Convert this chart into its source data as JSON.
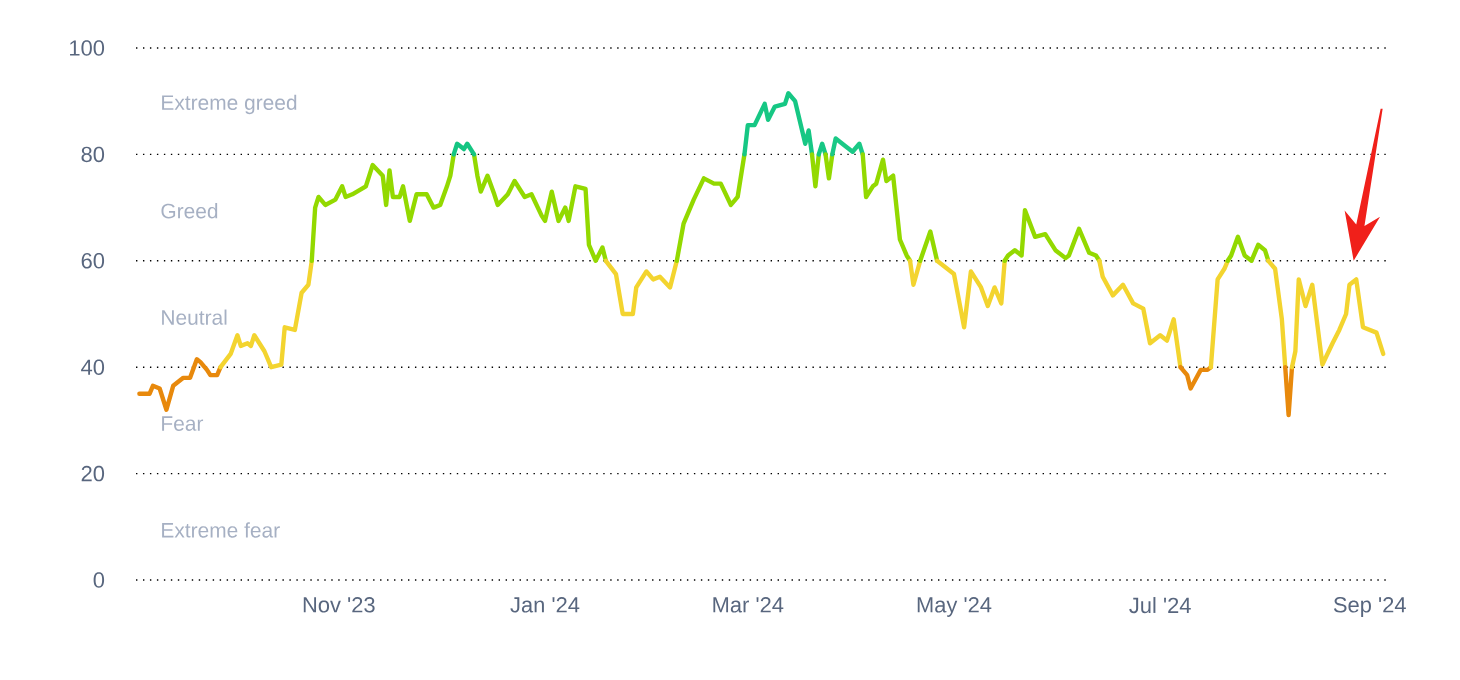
{
  "chart_data": {
    "type": "line",
    "xlim": [
      "2023-09-02",
      "2024-09-07"
    ],
    "xticks": [
      {
        "value": "2023-11-01",
        "label": "Nov '23"
      },
      {
        "value": "2024-01-01",
        "label": "Jan '24"
      },
      {
        "value": "2024-03-01",
        "label": "Mar '24"
      },
      {
        "value": "2024-05-01",
        "label": "May '24"
      },
      {
        "value": "2024-07-01",
        "label": "Jul '24"
      },
      {
        "value": "2024-09-01",
        "label": "Sep '24"
      }
    ],
    "ylim": [
      0,
      100
    ],
    "yticks": [
      0,
      20,
      40,
      60,
      80,
      100
    ],
    "grid": "y",
    "annotations": [
      "Extreme greed",
      "Greed",
      "Neutral",
      "Fear",
      "Extreme fear"
    ],
    "series": [
      {
        "color": "#e8890c",
        "x": [
          "2023-09-03",
          "2023-09-06",
          "2023-09-07",
          "2023-09-09",
          "2023-09-11",
          "2023-09-13",
          "2023-09-16",
          "2023-09-18",
          "2023-09-20",
          "2023-09-21",
          "2023-09-23",
          "2023-09-24",
          "2023-09-26",
          "2023-09-27"
        ],
        "values": [
          35,
          35,
          36.5,
          36,
          32,
          36.5,
          38,
          38,
          41.5,
          41,
          39.5,
          38.5,
          38.5,
          40
        ]
      },
      {
        "color": "#f3d42f",
        "x": [
          "2023-09-27",
          "2023-09-30",
          "2023-10-02",
          "2023-10-03",
          "2023-10-05",
          "2023-10-06",
          "2023-10-07",
          "2023-10-10",
          "2023-10-12",
          "2023-10-15",
          "2023-10-16",
          "2023-10-19",
          "2023-10-21",
          "2023-10-23",
          "2023-10-24"
        ],
        "values": [
          40,
          42.5,
          46,
          44,
          44.5,
          44,
          46,
          43,
          40,
          40.5,
          47.5,
          47,
          54,
          55.5,
          60
        ]
      },
      {
        "color": "#93d900",
        "x": [
          "2023-10-24",
          "2023-10-25",
          "2023-10-26",
          "2023-10-28",
          "2023-10-31",
          "2023-11-02",
          "2023-11-03",
          "2023-11-05",
          "2023-11-09",
          "2023-11-11",
          "2023-11-14",
          "2023-11-15",
          "2023-11-16",
          "2023-11-17",
          "2023-11-19",
          "2023-11-20",
          "2023-11-22",
          "2023-11-24",
          "2023-11-27",
          "2023-11-29",
          "2023-12-01",
          "2023-12-03",
          "2023-12-04",
          "2023-12-05"
        ],
        "values": [
          60,
          70,
          72,
          70.5,
          71.5,
          74,
          72,
          72.5,
          74,
          78,
          76,
          70.5,
          77,
          72,
          72,
          74,
          67.5,
          72.5,
          72.5,
          70,
          70.5,
          74,
          76,
          80
        ]
      },
      {
        "color": "#93d900",
        "x": [
          "2023-12-11",
          "2023-12-12",
          "2023-12-13",
          "2023-12-15",
          "2023-12-17",
          "2023-12-18",
          "2023-12-21",
          "2023-12-23",
          "2023-12-26",
          "2023-12-28",
          "2023-12-31",
          "2024-01-01",
          "2024-01-03",
          "2024-01-05",
          "2024-01-07",
          "2024-01-08",
          "2024-01-10",
          "2024-01-13",
          "2024-01-14",
          "2024-01-16",
          "2024-01-18",
          "2024-01-19"
        ],
        "values": [
          80,
          76,
          73,
          76,
          72.5,
          70.5,
          72.5,
          75,
          72,
          72.5,
          68.5,
          67.5,
          73,
          67.5,
          70,
          67.5,
          74,
          73.5,
          63,
          60,
          62.5,
          60
        ]
      },
      {
        "color": "#f3d42f",
        "x": [
          "2024-01-19",
          "2024-01-22",
          "2024-01-24",
          "2024-01-27",
          "2024-01-28",
          "2024-01-31",
          "2024-02-02",
          "2024-02-04",
          "2024-02-07",
          "2024-02-09"
        ],
        "values": [
          60,
          57.5,
          50,
          50,
          55,
          58,
          56.5,
          57,
          55,
          60
        ]
      },
      {
        "color": "#93d900",
        "x": [
          "2024-02-09",
          "2024-02-11",
          "2024-02-14",
          "2024-02-17",
          "2024-02-20",
          "2024-02-22",
          "2024-02-25",
          "2024-02-27",
          "2024-02-29"
        ],
        "values": [
          60,
          67,
          71.5,
          75.5,
          74.5,
          74.5,
          70.5,
          72,
          80
        ]
      },
      {
        "color": "#16c784",
        "x": [
          "2024-02-29",
          "2024-03-01",
          "2024-03-03",
          "2024-03-06",
          "2024-03-07",
          "2024-03-09",
          "2024-03-12",
          "2024-03-13",
          "2024-03-15",
          "2024-03-18",
          "2024-03-19",
          "2024-03-20"
        ],
        "values": [
          80,
          85.5,
          85.5,
          89.5,
          86.5,
          89,
          89.5,
          91.5,
          90,
          82,
          84.5,
          80
        ]
      },
      {
        "color": "#93d900",
        "x": [
          "2024-03-20",
          "2024-03-21",
          "2024-03-22"
        ],
        "values": [
          80,
          74,
          80
        ]
      },
      {
        "color": "#16c784",
        "x": [
          "2024-03-22",
          "2024-03-23",
          "2024-03-24"
        ],
        "values": [
          80,
          82,
          80
        ]
      },
      {
        "color": "#93d900",
        "x": [
          "2024-03-24",
          "2024-03-25",
          "2024-03-26"
        ],
        "values": [
          80,
          75.5,
          80
        ]
      },
      {
        "color": "#1ac986",
        "x": [
          "2024-03-26",
          "2024-03-27",
          "2024-03-30",
          "2024-04-01",
          "2024-04-03",
          "2024-04-04"
        ],
        "values": [
          80,
          83,
          81.5,
          80.5,
          82,
          80
        ]
      },
      {
        "color": "#93d900",
        "x": [
          "2024-04-04",
          "2024-04-05",
          "2024-04-07",
          "2024-04-08",
          "2024-04-10",
          "2024-04-11",
          "2024-04-13",
          "2024-04-15",
          "2024-04-17",
          "2024-04-18"
        ],
        "values": [
          80,
          72,
          74,
          74.5,
          79,
          75,
          76,
          64,
          61,
          60
        ]
      },
      {
        "color": "#f3d42f",
        "x": [
          "2024-04-18",
          "2024-04-19",
          "2024-04-21"
        ],
        "values": [
          60,
          55.5,
          60
        ]
      },
      {
        "color": "#93d900",
        "x": [
          "2024-04-21",
          "2024-04-24",
          "2024-04-26"
        ],
        "values": [
          60,
          65.5,
          60
        ]
      },
      {
        "color": "#f3d42f",
        "x": [
          "2024-04-26",
          "2024-05-01",
          "2024-05-04",
          "2024-05-06",
          "2024-05-09",
          "2024-05-11",
          "2024-05-13",
          "2024-05-15",
          "2024-05-16"
        ],
        "values": [
          60,
          57.5,
          47.5,
          58,
          55,
          51.5,
          55,
          52,
          60
        ]
      },
      {
        "color": "#93d900",
        "x": [
          "2024-05-16",
          "2024-05-17",
          "2024-05-19",
          "2024-05-21",
          "2024-05-22",
          "2024-05-25",
          "2024-05-28",
          "2024-05-31",
          "2024-06-03",
          "2024-06-04",
          "2024-06-07",
          "2024-06-10",
          "2024-06-12",
          "2024-06-13"
        ],
        "values": [
          60,
          61,
          62,
          61,
          69.5,
          64.5,
          65,
          62,
          60.5,
          61,
          66,
          61.5,
          61,
          60
        ]
      },
      {
        "color": "#f3d42f",
        "x": [
          "2024-06-13",
          "2024-06-14",
          "2024-06-17",
          "2024-06-20",
          "2024-06-23",
          "2024-06-26",
          "2024-06-28",
          "2024-07-01",
          "2024-07-03",
          "2024-07-05",
          "2024-07-07"
        ],
        "values": [
          60,
          57,
          53.5,
          55.5,
          52,
          51,
          44.5,
          46,
          45,
          49,
          40
        ]
      },
      {
        "color": "#e8890c",
        "x": [
          "2024-07-07",
          "2024-07-09",
          "2024-07-10",
          "2024-07-13",
          "2024-07-15",
          "2024-07-16"
        ],
        "values": [
          40,
          38.5,
          36,
          39.5,
          39.5,
          40
        ]
      },
      {
        "color": "#f3d42f",
        "x": [
          "2024-07-16",
          "2024-07-18",
          "2024-07-20",
          "2024-07-21"
        ],
        "values": [
          40,
          56.5,
          58.5,
          60
        ]
      },
      {
        "color": "#93d900",
        "x": [
          "2024-07-21",
          "2024-07-22",
          "2024-07-24",
          "2024-07-26",
          "2024-07-28",
          "2024-07-30",
          "2024-08-01",
          "2024-08-02"
        ],
        "values": [
          60,
          61,
          64.5,
          61,
          60,
          63,
          62,
          60
        ]
      },
      {
        "color": "#f3d42f",
        "x": [
          "2024-08-02",
          "2024-08-04",
          "2024-08-06",
          "2024-08-07"
        ],
        "values": [
          60,
          58.5,
          49,
          40
        ]
      },
      {
        "color": "#e8890c",
        "x": [
          "2024-08-07",
          "2024-08-08",
          "2024-08-09"
        ],
        "values": [
          40,
          31,
          40
        ]
      },
      {
        "color": "#f3d42f",
        "x": [
          "2024-08-09",
          "2024-08-10",
          "2024-08-11",
          "2024-08-13",
          "2024-08-15",
          "2024-08-18",
          "2024-08-21",
          "2024-08-23",
          "2024-08-25",
          "2024-08-26",
          "2024-08-28",
          "2024-08-30",
          "2024-09-03",
          "2024-09-05"
        ],
        "values": [
          40,
          43,
          56.5,
          51.5,
          55.5,
          40.5,
          44.5,
          47,
          50,
          55.5,
          56.5,
          47.5,
          46.5,
          42.5
        ]
      },
      {
        "color": "#14c582",
        "x": [
          "2023-12-05",
          "2023-12-06",
          "2023-12-08",
          "2023-12-09",
          "2023-12-11"
        ],
        "values": [
          80,
          82,
          81,
          82,
          80
        ]
      }
    ]
  }
}
